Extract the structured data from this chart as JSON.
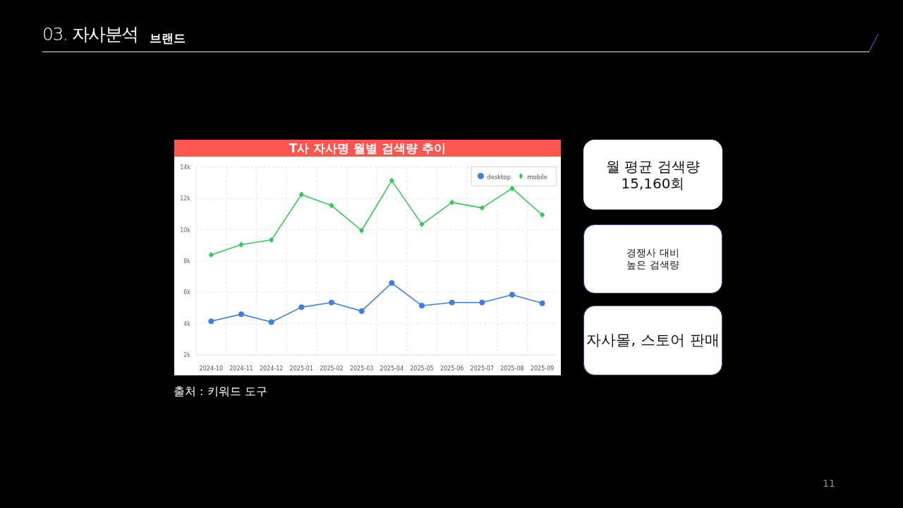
{
  "chart_data": {
    "type": "line",
    "title": "T사 자사명 월별 검색량 추이",
    "categories": [
      "2024-10",
      "2024-11",
      "2024-12",
      "2025-01",
      "2025-02",
      "2025-03",
      "2025-04",
      "2025-05",
      "2025-06",
      "2025-07",
      "2025-08",
      "2025-09"
    ],
    "series": [
      {
        "name": "desktop",
        "color": "#3f7fe0",
        "marker": "circle",
        "values": [
          4150,
          4600,
          4100,
          5050,
          5350,
          4800,
          6600,
          5150,
          5350,
          5350,
          5850,
          5300
        ]
      },
      {
        "name": "mobile",
        "color": "#34c85a",
        "marker": "diamond",
        "values": [
          8400,
          9050,
          9350,
          12250,
          11550,
          9950,
          13150,
          10350,
          11750,
          11400,
          12650,
          10950
        ]
      }
    ],
    "ylim": [
      2000,
      14000
    ],
    "yticks": [
      {
        "value": 2000,
        "label": "2k"
      },
      {
        "value": 4000,
        "label": "4k"
      },
      {
        "value": 6000,
        "label": "6k"
      },
      {
        "value": 8000,
        "label": "8k"
      },
      {
        "value": 10000,
        "label": "10k"
      },
      {
        "value": 12000,
        "label": "12k"
      },
      {
        "value": 14000,
        "label": "14k"
      }
    ],
    "grid": true,
    "legend": "top right",
    "line_style": "solid",
    "annotations": [
      "03. 자사분석",
      "브랜드",
      "월 평균 검색량\n15,160회",
      "경쟁사 대비\n높은 검색량",
      "자사몰, 스토어 판매",
      "출처 : 키워드 도구",
      "11"
    ]
  }
}
